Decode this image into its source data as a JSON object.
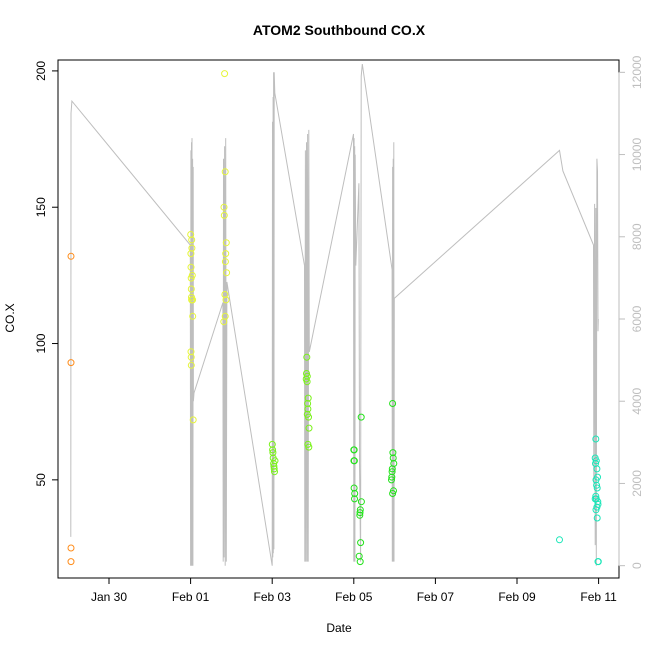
{
  "chart_data": {
    "type": "scatter",
    "title": "ATOM2 Southbound CO.X",
    "xlabel": "Date",
    "ylabel": "CO.X",
    "xlim": [
      "2025-01-28T18:00",
      "2025-02-11T12:00"
    ],
    "ylim": [
      14,
      204
    ],
    "x_ticks": [
      {
        "date": "2025-01-30",
        "label": "Jan 30"
      },
      {
        "date": "2025-02-01",
        "label": "Feb 01"
      },
      {
        "date": "2025-02-03",
        "label": "Feb 03"
      },
      {
        "date": "2025-02-05",
        "label": "Feb 05"
      },
      {
        "date": "2025-02-07",
        "label": "Feb 07"
      },
      {
        "date": "2025-02-09",
        "label": "Feb 09"
      },
      {
        "date": "2025-02-11",
        "label": "Feb 11"
      }
    ],
    "y_ticks": [
      50,
      100,
      150,
      200
    ],
    "y2lim": [
      -300,
      12300
    ],
    "y2_ticks": [
      0,
      2000,
      4000,
      6000,
      8000,
      10000,
      12000
    ],
    "grid": false,
    "colors": {
      "secondary_line": "#bebebe",
      "right_axis": "#bebebe",
      "axis": "#000000"
    },
    "series": [
      {
        "color": "#ff8c1a",
        "points": [
          {
            "x": "2025-01-29T01:40",
            "y": 132
          },
          {
            "x": "2025-01-29T01:40",
            "y": 93
          },
          {
            "x": "2025-01-29T01:40",
            "y": 25
          },
          {
            "x": "2025-01-29T01:40",
            "y": 20
          }
        ]
      },
      {
        "color": "#e6f53a",
        "points": [
          {
            "x": "2025-02-01T00:05",
            "y": 140
          },
          {
            "x": "2025-02-01T00:10",
            "y": 133
          },
          {
            "x": "2025-02-01T00:15",
            "y": 128
          },
          {
            "x": "2025-02-01T00:20",
            "y": 124
          },
          {
            "x": "2025-02-01T00:25",
            "y": 120
          },
          {
            "x": "2025-02-01T00:30",
            "y": 117
          },
          {
            "x": "2025-02-01T00:35",
            "y": 116
          },
          {
            "x": "2025-02-01T00:40",
            "y": 138
          },
          {
            "x": "2025-02-01T00:45",
            "y": 135
          },
          {
            "x": "2025-02-01T01:00",
            "y": 125
          },
          {
            "x": "2025-02-01T01:10",
            "y": 116
          },
          {
            "x": "2025-02-01T01:15",
            "y": 110
          },
          {
            "x": "2025-02-01T00:15",
            "y": 97
          },
          {
            "x": "2025-02-01T00:20",
            "y": 95
          },
          {
            "x": "2025-02-01T00:25",
            "y": 92
          },
          {
            "x": "2025-02-01T01:30",
            "y": 72
          },
          {
            "x": "2025-02-01T20:00",
            "y": 199
          },
          {
            "x": "2025-02-01T20:20",
            "y": 163
          },
          {
            "x": "2025-02-01T19:40",
            "y": 150
          },
          {
            "x": "2025-02-01T19:50",
            "y": 147
          },
          {
            "x": "2025-02-01T21:00",
            "y": 137
          },
          {
            "x": "2025-02-01T20:40",
            "y": 133
          },
          {
            "x": "2025-02-01T20:30",
            "y": 130
          },
          {
            "x": "2025-02-01T21:10",
            "y": 126
          },
          {
            "x": "2025-02-01T20:10",
            "y": 118
          },
          {
            "x": "2025-02-01T20:50",
            "y": 116
          },
          {
            "x": "2025-02-01T20:20",
            "y": 110
          },
          {
            "x": "2025-02-01T19:30",
            "y": 108
          }
        ]
      },
      {
        "color": "#7af21a",
        "points": [
          {
            "x": "2025-02-03T00:05",
            "y": 63
          },
          {
            "x": "2025-02-03T00:15",
            "y": 61
          },
          {
            "x": "2025-02-03T00:25",
            "y": 60
          },
          {
            "x": "2025-02-03T00:35",
            "y": 58
          },
          {
            "x": "2025-02-03T01:40",
            "y": 57
          },
          {
            "x": "2025-02-03T00:50",
            "y": 56
          },
          {
            "x": "2025-02-03T01:00",
            "y": 55
          },
          {
            "x": "2025-02-03T01:10",
            "y": 54
          },
          {
            "x": "2025-02-03T01:20",
            "y": 53
          },
          {
            "x": "2025-02-03T20:20",
            "y": 95
          },
          {
            "x": "2025-02-03T20:10",
            "y": 89
          },
          {
            "x": "2025-02-03T20:40",
            "y": 88
          },
          {
            "x": "2025-02-03T20:00",
            "y": 87
          },
          {
            "x": "2025-02-03T20:30",
            "y": 86
          },
          {
            "x": "2025-02-03T21:10",
            "y": 80
          },
          {
            "x": "2025-02-03T20:50",
            "y": 78
          },
          {
            "x": "2025-02-03T21:00",
            "y": 76
          },
          {
            "x": "2025-02-03T20:40",
            "y": 74
          },
          {
            "x": "2025-02-03T21:20",
            "y": 73
          },
          {
            "x": "2025-02-03T21:40",
            "y": 69
          },
          {
            "x": "2025-02-03T21:00",
            "y": 63
          },
          {
            "x": "2025-02-03T21:30",
            "y": 62
          }
        ]
      },
      {
        "color": "#22e21a",
        "points": [
          {
            "x": "2025-02-05T00:00",
            "y": 61
          },
          {
            "x": "2025-02-05T00:15",
            "y": 61
          },
          {
            "x": "2025-02-05T00:05",
            "y": 57
          },
          {
            "x": "2025-02-05T00:20",
            "y": 57
          },
          {
            "x": "2025-02-05T00:10",
            "y": 47
          },
          {
            "x": "2025-02-05T00:30",
            "y": 45
          },
          {
            "x": "2025-02-05T00:25",
            "y": 43
          },
          {
            "x": "2025-02-05T04:20",
            "y": 73
          },
          {
            "x": "2025-02-05T04:30",
            "y": 42
          },
          {
            "x": "2025-02-05T03:50",
            "y": 39
          },
          {
            "x": "2025-02-05T03:40",
            "y": 38
          },
          {
            "x": "2025-02-05T03:30",
            "y": 37
          },
          {
            "x": "2025-02-05T04:00",
            "y": 27
          },
          {
            "x": "2025-02-05T03:10",
            "y": 22
          },
          {
            "x": "2025-02-05T03:45",
            "y": 20
          },
          {
            "x": "2025-02-05T22:50",
            "y": 78
          },
          {
            "x": "2025-02-05T23:00",
            "y": 60
          },
          {
            "x": "2025-02-05T23:10",
            "y": 58
          },
          {
            "x": "2025-02-05T23:30",
            "y": 56
          },
          {
            "x": "2025-02-05T22:40",
            "y": 54
          },
          {
            "x": "2025-02-05T22:30",
            "y": 53
          },
          {
            "x": "2025-02-05T22:20",
            "y": 51
          },
          {
            "x": "2025-02-05T22:10",
            "y": 50
          },
          {
            "x": "2025-02-05T23:20",
            "y": 46
          },
          {
            "x": "2025-02-05T22:50",
            "y": 45
          }
        ]
      },
      {
        "color": "#1ae6b8",
        "points": [
          {
            "x": "2025-02-10T01:00",
            "y": 28
          },
          {
            "x": "2025-02-10T22:20",
            "y": 65
          },
          {
            "x": "2025-02-10T22:00",
            "y": 58
          },
          {
            "x": "2025-02-10T22:40",
            "y": 57
          },
          {
            "x": "2025-02-10T22:10",
            "y": 56
          },
          {
            "x": "2025-02-10T23:00",
            "y": 54
          },
          {
            "x": "2025-02-10T22:30",
            "y": 50
          },
          {
            "x": "2025-02-10T23:20",
            "y": 51
          },
          {
            "x": "2025-02-10T22:50",
            "y": 48
          },
          {
            "x": "2025-02-10T23:10",
            "y": 47
          },
          {
            "x": "2025-02-10T22:20",
            "y": 44
          },
          {
            "x": "2025-02-10T22:40",
            "y": 43
          },
          {
            "x": "2025-02-10T22:00",
            "y": 43
          },
          {
            "x": "2025-02-10T23:30",
            "y": 42
          },
          {
            "x": "2025-02-10T23:40",
            "y": 41
          },
          {
            "x": "2025-02-10T23:00",
            "y": 40
          },
          {
            "x": "2025-02-10T22:30",
            "y": 39
          },
          {
            "x": "2025-02-10T23:10",
            "y": 36
          },
          {
            "x": "2025-02-10T23:40",
            "y": 20
          },
          {
            "x": "2025-02-10T23:50",
            "y": 20
          }
        ]
      }
    ],
    "secondary_series": {
      "axis": "right",
      "type": "line",
      "color": "#bebebe",
      "points": [
        [
          "2025-01-29T01:30",
          700
        ],
        [
          "2025-01-29T01:40",
          11000
        ],
        [
          "2025-01-29T02:10",
          11300
        ],
        [
          "2025-01-31T23:50",
          7800
        ],
        [
          "2025-02-01T00:00",
          0
        ],
        [
          "2025-02-01T00:10",
          10100
        ],
        [
          "2025-02-01T00:20",
          0
        ],
        [
          "2025-02-01T00:30",
          10300
        ],
        [
          "2025-02-01T00:40",
          0
        ],
        [
          "2025-02-01T00:50",
          10400
        ],
        [
          "2025-02-01T01:00",
          0
        ],
        [
          "2025-02-01T01:10",
          9900
        ],
        [
          "2025-02-01T01:20",
          0
        ],
        [
          "2025-02-01T01:30",
          9700
        ],
        [
          "2025-02-01T01:40",
          4000
        ],
        [
          "2025-02-01T02:00",
          4200
        ],
        [
          "2025-02-01T19:00",
          6400
        ],
        [
          "2025-02-01T19:10",
          100
        ],
        [
          "2025-02-01T19:20",
          9900
        ],
        [
          "2025-02-01T19:40",
          200
        ],
        [
          "2025-02-01T20:00",
          10200
        ],
        [
          "2025-02-01T20:20",
          0
        ],
        [
          "2025-02-01T20:40",
          10400
        ],
        [
          "2025-02-01T21:00",
          100
        ],
        [
          "2025-02-01T21:20",
          6900
        ],
        [
          "2025-02-03T00:00",
          0
        ],
        [
          "2025-02-03T00:10",
          10800
        ],
        [
          "2025-02-03T00:20",
          200
        ],
        [
          "2025-02-03T00:30",
          11400
        ],
        [
          "2025-02-03T00:40",
          300
        ],
        [
          "2025-02-03T00:50",
          12000
        ],
        [
          "2025-02-03T01:00",
          400
        ],
        [
          "2025-02-03T01:10",
          12000
        ],
        [
          "2025-02-03T01:30",
          11500
        ],
        [
          "2025-02-03T19:00",
          7300
        ],
        [
          "2025-02-03T19:10",
          100
        ],
        [
          "2025-02-03T19:30",
          10100
        ],
        [
          "2025-02-03T19:50",
          100
        ],
        [
          "2025-02-03T20:10",
          10300
        ],
        [
          "2025-02-03T20:30",
          100
        ],
        [
          "2025-02-03T20:50",
          10500
        ],
        [
          "2025-02-03T21:10",
          100
        ],
        [
          "2025-02-03T21:30",
          10600
        ],
        [
          "2025-02-03T21:50",
          5200
        ],
        [
          "2025-02-04T23:50",
          10500
        ],
        [
          "2025-02-05T00:00",
          100
        ],
        [
          "2025-02-05T00:10",
          10400
        ],
        [
          "2025-02-05T00:20",
          100
        ],
        [
          "2025-02-05T00:30",
          10200
        ],
        [
          "2025-02-05T00:40",
          100
        ],
        [
          "2025-02-05T00:50",
          10000
        ],
        [
          "2025-02-05T01:10",
          7300
        ],
        [
          "2025-02-05T03:00",
          9300
        ],
        [
          "2025-02-05T03:20",
          2500
        ],
        [
          "2025-02-05T04:00",
          100
        ],
        [
          "2025-02-05T04:20",
          11900
        ],
        [
          "2025-02-05T05:00",
          12200
        ],
        [
          "2025-02-05T22:30",
          7200
        ],
        [
          "2025-02-05T22:40",
          100
        ],
        [
          "2025-02-05T22:50",
          9700
        ],
        [
          "2025-02-05T23:00",
          100
        ],
        [
          "2025-02-05T23:10",
          9900
        ],
        [
          "2025-02-05T23:20",
          100
        ],
        [
          "2025-02-05T23:30",
          10300
        ],
        [
          "2025-02-05T23:40",
          100
        ],
        [
          "2025-02-05T23:50",
          6500
        ],
        [
          "2025-02-10T01:00",
          10100
        ],
        [
          "2025-02-10T03:00",
          9600
        ],
        [
          "2025-02-10T21:00",
          7800
        ],
        [
          "2025-02-10T21:10",
          2000
        ],
        [
          "2025-02-10T21:40",
          8800
        ],
        [
          "2025-02-10T22:00",
          500
        ],
        [
          "2025-02-10T22:20",
          8700
        ],
        [
          "2025-02-10T22:40",
          0
        ],
        [
          "2025-02-10T23:00",
          9900
        ],
        [
          "2025-02-10T23:20",
          9600
        ],
        [
          "2025-02-10T23:40",
          5700
        ],
        [
          "2025-02-10T23:50",
          6000
        ]
      ]
    }
  }
}
